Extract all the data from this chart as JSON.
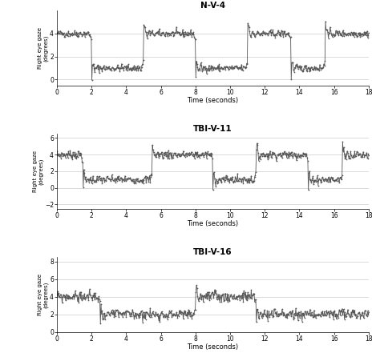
{
  "title1": "N-V-4",
  "title2": "TBI-V-11",
  "title3": "TBI-V-16",
  "ylabel": "Right eye gaze\n(degrees)",
  "xlabel": "Time (seconds)",
  "bg_color": "#ffffff",
  "line_color": "#555555",
  "xlim": [
    0,
    18
  ],
  "subplot1": {
    "ylim": [
      -0.5,
      6
    ],
    "yticks": [
      0,
      2,
      4
    ],
    "high": 4.0,
    "low": 1.0,
    "transitions": [
      2.0,
      5.0,
      8.0,
      11.0,
      13.5,
      15.5
    ],
    "start_high": true,
    "noise_std": 0.15,
    "spike_amp": 1.5
  },
  "subplot2": {
    "ylim": [
      -2.5,
      6.5
    ],
    "yticks": [
      -2,
      0,
      2,
      4,
      6
    ],
    "high": 4.0,
    "low": 1.0,
    "transitions": [
      1.5,
      5.5,
      9.0,
      11.5,
      14.5,
      16.5
    ],
    "start_high": true,
    "noise_std": 0.25,
    "spike_amp": 1.5
  },
  "subplot3": {
    "ylim": [
      0,
      8.5
    ],
    "yticks": [
      0,
      2,
      4,
      6,
      8
    ],
    "high": 4.0,
    "low": 2.0,
    "transitions": [
      2.5,
      8.0,
      11.5
    ],
    "start_high": true,
    "noise_std": 0.3,
    "spike_amp": 1.8
  },
  "dt": 0.033,
  "marker_size": 2.5,
  "lw": 0.6
}
